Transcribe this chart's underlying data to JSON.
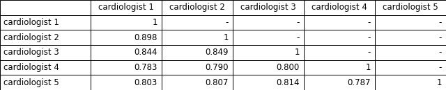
{
  "col_headers": [
    "cardiologist 1",
    "cardiologist 2",
    "cardiologist 3",
    "cardiologist 4",
    "cardiologist 5"
  ],
  "row_headers": [
    "cardiologist 1",
    "cardiologist 2",
    "cardiologist 3",
    "cardiologist 4",
    "cardiologist 5"
  ],
  "table_data": [
    [
      "1",
      "-",
      "-",
      "-",
      "-"
    ],
    [
      "0.898",
      "1",
      "-",
      "-",
      "-"
    ],
    [
      "0.844",
      "0.849",
      "1",
      "-",
      "-"
    ],
    [
      "0.783",
      "0.790",
      "0.800",
      "1",
      "-"
    ],
    [
      "0.803",
      "0.807",
      "0.814",
      "0.787",
      "1"
    ]
  ],
  "font_size": 8.5,
  "bg_color": "#ffffff",
  "line_color": "#000000",
  "text_color": "#000000",
  "figw": 6.4,
  "figh": 1.3
}
